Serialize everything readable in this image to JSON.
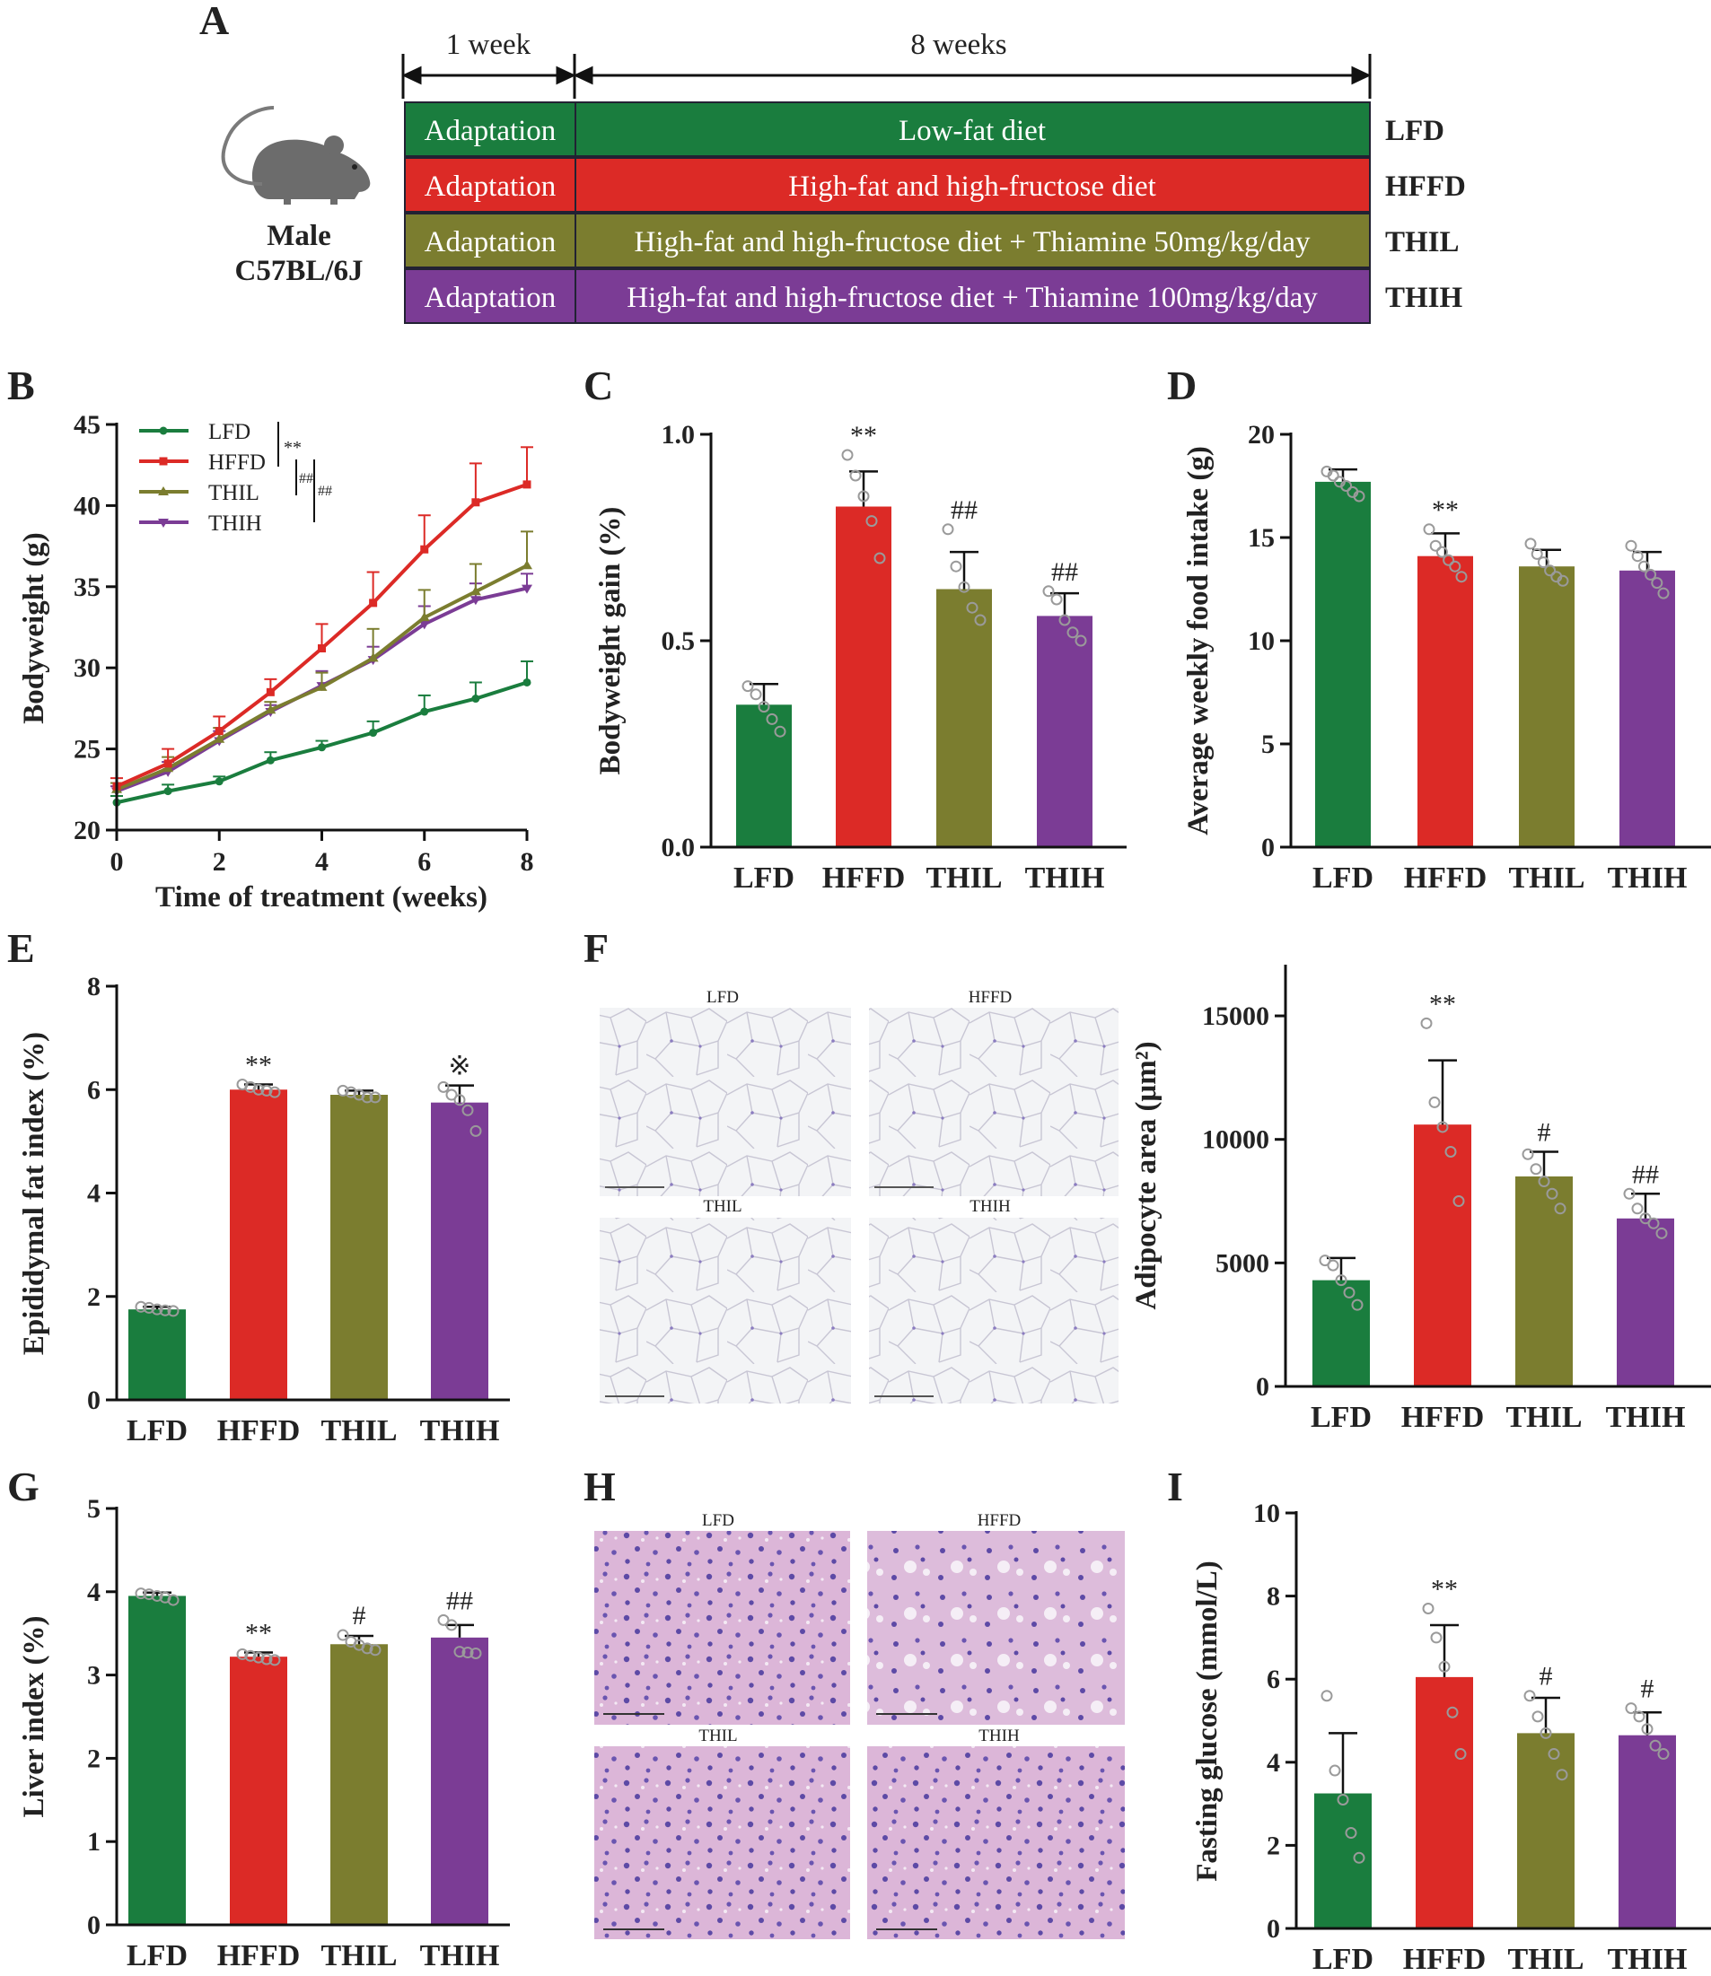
{
  "panel_labels": {
    "A": "A",
    "B": "B",
    "C": "C",
    "D": "D",
    "E": "E",
    "F": "F",
    "G": "G",
    "H": "H",
    "I": "I"
  },
  "colors": {
    "LFD": "#1a7d3e",
    "HFFD": "#dc2a26",
    "THIL": "#7b7d2f",
    "THIH": "#7b3c95"
  },
  "timeline": {
    "mouse_label_1": "Male",
    "mouse_label_2": "C57BL/6J",
    "period_1": "1 week",
    "period_2": "8 weeks",
    "rows": [
      {
        "adapt": "Adaptation",
        "diet": "Low-fat diet",
        "group": "LFD"
      },
      {
        "adapt": "Adaptation",
        "diet": "High-fat and high-fructose diet",
        "group": "HFFD"
      },
      {
        "adapt": "Adaptation",
        "diet": "High-fat and high-fructose diet + Thiamine 50mg/kg/day",
        "group": "THIL"
      },
      {
        "adapt": "Adaptation",
        "diet": "High-fat and high-fructose diet + Thiamine 100mg/kg/day",
        "group": "THIH"
      }
    ]
  },
  "histology_F": {
    "labels": [
      "LFD",
      "HFFD",
      "THIL",
      "THIH"
    ]
  },
  "histology_H": {
    "labels": [
      "LFD",
      "HFFD",
      "THIL",
      "THIH"
    ]
  },
  "chart_data": [
    {
      "id": "B",
      "type": "line",
      "xlabel": "Time of treatment (weeks)",
      "ylabel": "Bodyweight (g)",
      "xlim": [
        0,
        8
      ],
      "ylim": [
        20,
        45
      ],
      "xticks": [
        "0",
        "2",
        "4",
        "6",
        "8"
      ],
      "yticks": [
        "20",
        "25",
        "30",
        "35",
        "40",
        "45"
      ],
      "x": [
        0,
        1,
        2,
        3,
        4,
        5,
        6,
        7,
        8
      ],
      "series": [
        {
          "name": "LFD",
          "values": [
            21.7,
            22.4,
            23.0,
            24.3,
            25.1,
            26.0,
            27.3,
            28.1,
            29.1
          ],
          "errors": [
            0.4,
            0.4,
            0.3,
            0.5,
            0.4,
            0.7,
            1.0,
            1.0,
            1.3
          ]
        },
        {
          "name": "HFFD",
          "values": [
            22.7,
            24.1,
            26.1,
            28.5,
            31.2,
            34.0,
            37.3,
            40.2,
            41.3
          ],
          "errors": [
            0.5,
            0.9,
            0.9,
            0.8,
            1.5,
            1.9,
            2.1,
            2.4,
            2.3
          ]
        },
        {
          "name": "THIL",
          "values": [
            22.5,
            23.8,
            25.6,
            27.4,
            28.8,
            30.6,
            33.1,
            34.7,
            36.3
          ],
          "errors": [
            0.4,
            0.7,
            0.7,
            0.5,
            0.9,
            1.8,
            1.7,
            1.7,
            2.1
          ]
        },
        {
          "name": "THIH",
          "values": [
            22.4,
            23.6,
            25.5,
            27.3,
            28.9,
            30.5,
            32.7,
            34.2,
            34.9
          ],
          "errors": [
            0.3,
            0.6,
            0.6,
            0.4,
            0.9,
            0.8,
            1.1,
            1.0,
            0.9
          ]
        }
      ],
      "legend_sig": [
        "**",
        "##",
        "##"
      ]
    },
    {
      "id": "C",
      "type": "bar",
      "ylabel": "Bodyweight gain (%)",
      "categories": [
        "LFD",
        "HFFD",
        "THIL",
        "THIH"
      ],
      "ylim": [
        0,
        1.0
      ],
      "yticks": [
        "0.0",
        "0.5",
        "1.0"
      ],
      "values": [
        0.345,
        0.825,
        0.625,
        0.56
      ],
      "errors": [
        0.05,
        0.085,
        0.09,
        0.055
      ],
      "points": [
        [
          0.39,
          0.37,
          0.34,
          0.31,
          0.28
        ],
        [
          0.95,
          0.9,
          0.85,
          0.79,
          0.7
        ],
        [
          0.77,
          0.68,
          0.63,
          0.58,
          0.55
        ],
        [
          0.62,
          0.6,
          0.55,
          0.52,
          0.5
        ]
      ],
      "sig": [
        "",
        "**",
        "##",
        "##"
      ]
    },
    {
      "id": "D",
      "type": "bar",
      "ylabel": "Average weekly food intake (g)",
      "categories": [
        "LFD",
        "HFFD",
        "THIL",
        "THIH"
      ],
      "ylim": [
        0,
        20
      ],
      "yticks": [
        "0",
        "5",
        "10",
        "15",
        "20"
      ],
      "values": [
        17.7,
        14.1,
        13.6,
        13.4
      ],
      "errors": [
        0.6,
        1.1,
        0.8,
        0.9
      ],
      "points": [
        [
          18.2,
          18.0,
          17.7,
          17.5,
          17.2,
          17.0
        ],
        [
          15.4,
          14.6,
          14.3,
          13.9,
          13.6,
          13.1
        ],
        [
          14.7,
          14.2,
          13.8,
          13.4,
          13.1,
          12.9
        ],
        [
          14.6,
          14.1,
          13.6,
          13.2,
          12.8,
          12.3
        ]
      ],
      "sig": [
        "",
        "**",
        "",
        ""
      ]
    },
    {
      "id": "E",
      "type": "bar",
      "ylabel": "Epididymal fat index (%)",
      "categories": [
        "LFD",
        "HFFD",
        "THIL",
        "THIH"
      ],
      "ylim": [
        0,
        8
      ],
      "yticks": [
        "0",
        "2",
        "4",
        "6",
        "8"
      ],
      "values": [
        1.75,
        6.0,
        5.9,
        5.75
      ],
      "errors": [
        0.05,
        0.1,
        0.08,
        0.33
      ],
      "points": [
        [
          1.8,
          1.78,
          1.75,
          1.73,
          1.72
        ],
        [
          6.1,
          6.05,
          6.0,
          5.98,
          5.95
        ],
        [
          5.98,
          5.95,
          5.9,
          5.85,
          5.85
        ],
        [
          6.05,
          5.9,
          5.8,
          5.6,
          5.2
        ]
      ],
      "sig": [
        "",
        "**",
        "",
        "※"
      ]
    },
    {
      "id": "F",
      "type": "bar",
      "ylabel": "Adipocyte area (μm²)",
      "categories": [
        "LFD",
        "HFFD",
        "THIL",
        "THIH"
      ],
      "ylim": [
        0,
        17000
      ],
      "yticks": [
        "0",
        "5000",
        "10000",
        "15000"
      ],
      "values": [
        4300,
        10600,
        8500,
        6800
      ],
      "errors": [
        900,
        2600,
        1000,
        1000
      ],
      "points": [
        [
          5100,
          4900,
          4300,
          3800,
          3300
        ],
        [
          14700,
          11500,
          10500,
          9500,
          7500
        ],
        [
          9400,
          8800,
          8300,
          7800,
          7200
        ],
        [
          7800,
          7200,
          6800,
          6600,
          6200
        ]
      ],
      "sig": [
        "",
        "**",
        "#",
        "##"
      ]
    },
    {
      "id": "G",
      "type": "bar",
      "ylabel": "Liver index (%)",
      "categories": [
        "LFD",
        "HFFD",
        "THIL",
        "THIH"
      ],
      "ylim": [
        0,
        5
      ],
      "yticks": [
        "0",
        "1",
        "2",
        "3",
        "4",
        "5"
      ],
      "values": [
        3.95,
        3.22,
        3.37,
        3.45
      ],
      "errors": [
        0.04,
        0.05,
        0.1,
        0.15
      ],
      "points": [
        [
          3.98,
          3.97,
          3.95,
          3.93,
          3.9
        ],
        [
          3.25,
          3.23,
          3.21,
          3.19,
          3.18
        ],
        [
          3.48,
          3.4,
          3.36,
          3.32,
          3.3
        ],
        [
          3.66,
          3.6,
          3.28,
          3.27,
          3.26
        ]
      ],
      "sig": [
        "",
        "**",
        "#",
        "##"
      ]
    },
    {
      "id": "I",
      "type": "bar",
      "ylabel": "Fasting glucose (mmol/L)",
      "categories": [
        "LFD",
        "HFFD",
        "THIL",
        "THIH"
      ],
      "ylim": [
        0,
        10
      ],
      "yticks": [
        "0",
        "2",
        "4",
        "6",
        "8",
        "10"
      ],
      "values": [
        3.25,
        6.05,
        4.7,
        4.65
      ],
      "errors": [
        1.45,
        1.25,
        0.85,
        0.55
      ],
      "points": [
        [
          5.6,
          3.8,
          3.1,
          2.3,
          1.7
        ],
        [
          7.7,
          7.0,
          6.3,
          5.2,
          4.2
        ],
        [
          5.6,
          5.1,
          4.7,
          4.2,
          3.7
        ],
        [
          5.3,
          5.1,
          4.8,
          4.4,
          4.2
        ]
      ],
      "sig": [
        "",
        "**",
        "#",
        "#"
      ]
    }
  ]
}
